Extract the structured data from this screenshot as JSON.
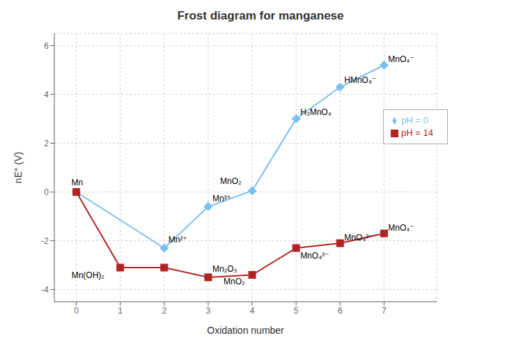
{
  "chart_data": {
    "type": "line",
    "title": "Frost diagram for manganese",
    "xlabel": "Oxidation number",
    "ylabel": "nE° (V)",
    "series": [
      {
        "name": "pH = 0",
        "color": "#7abfee",
        "marker": "diamond",
        "x": [
          0,
          2,
          3,
          4,
          5,
          6,
          7
        ],
        "values": [
          0,
          -2.3,
          -0.6,
          0.05,
          3.0,
          4.3,
          5.2
        ]
      },
      {
        "name": "pH = 14",
        "color": "#b22222",
        "marker": "square",
        "x": [
          0,
          1,
          2,
          3,
          4,
          5,
          6,
          7
        ],
        "values": [
          0,
          -3.1,
          -3.1,
          -3.5,
          -3.4,
          -2.3,
          -2.1,
          -1.7
        ]
      }
    ],
    "annotations": [
      {
        "text": "Mn",
        "x": 0,
        "y": 0.0
      },
      {
        "text": "Mn²⁺",
        "x": 2,
        "y": -2.3
      },
      {
        "text": "Mn³⁺",
        "x": 3,
        "y": -0.6
      },
      {
        "text": "MnO₂",
        "x": 4,
        "y": 0.05
      },
      {
        "text": "H₃MnO₄",
        "x": 5,
        "y": 3.0
      },
      {
        "text": "HMnO₄⁻",
        "x": 6,
        "y": 4.3
      },
      {
        "text": "MnO₄⁻",
        "x": 7,
        "y": 5.2
      },
      {
        "text": "Mn(OH)₂",
        "x": 1,
        "y": -3.1
      },
      {
        "text": "Mn₂O₃",
        "x": 3,
        "y": -3.5
      },
      {
        "text": "MnO₂",
        "x": 4,
        "y": -3.4
      },
      {
        "text": "MnO₄³⁻",
        "x": 5,
        "y": -2.3
      },
      {
        "text": "MnO₄²⁻",
        "x": 6,
        "y": -2.1
      },
      {
        "text": "MnO₄⁻",
        "x": 7,
        "y": -1.7
      }
    ],
    "xlim": [
      -0.5,
      8.2
    ],
    "ylim": [
      -4.5,
      6.5
    ],
    "xticks": [
      0,
      1,
      2,
      3,
      4,
      5,
      6,
      7
    ],
    "yticks": [
      -4,
      -2,
      0,
      2,
      4,
      6
    ],
    "grid": true,
    "legend": "right"
  }
}
